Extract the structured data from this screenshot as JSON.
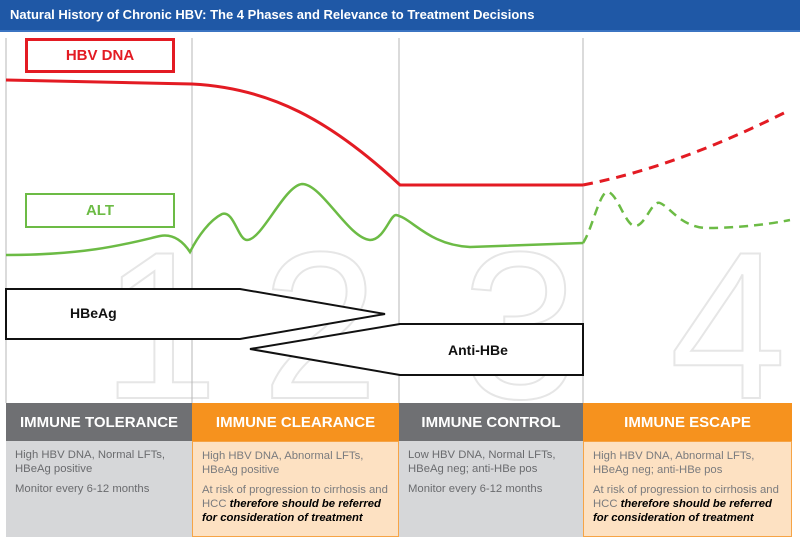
{
  "title": "Natural History of Chronic HBV: The 4 Phases and Relevance to Treatment Decisions",
  "phase_numbers": [
    "1",
    "2",
    "3",
    "4"
  ],
  "curves": {
    "hbv_dna_label": "HBV DNA",
    "alt_label": "ALT",
    "hbv_dna_color": "#e31b23",
    "alt_color": "#6cbb45"
  },
  "arrows": {
    "hbeag": "HBeAg",
    "anti_hbe": "Anti-HBe"
  },
  "phases": [
    {
      "name": "IMMUNE TOLERANCE",
      "findings": "High HBV DNA, Normal LFTs, HBeAg positive",
      "monitor": "Monitor every 6-12 months",
      "risk_prefix": "",
      "risk_emphasis": ""
    },
    {
      "name": "IMMUNE CLEARANCE",
      "findings": "High HBV DNA, Abnormal LFTs, HBeAg positive",
      "monitor": "",
      "risk_prefix": "At risk of progression to cirrhosis and HCC ",
      "risk_emphasis": "therefore should be referred for consideration of treatment"
    },
    {
      "name": "IMMUNE CONTROL",
      "findings": "Low HBV DNA, Normal LFTs, HBeAg neg; anti-HBe pos",
      "monitor": "Monitor every 6-12 months",
      "risk_prefix": "",
      "risk_emphasis": ""
    },
    {
      "name": "IMMUNE ESCAPE",
      "findings": "High HBV DNA, Abnormal LFTs, HBeAg neg; anti-HBe pos",
      "monitor": "",
      "risk_prefix": "At risk of progression to cirrhosis and HCC ",
      "risk_emphasis": "therefore should be referred for consideration of treatment"
    }
  ]
}
